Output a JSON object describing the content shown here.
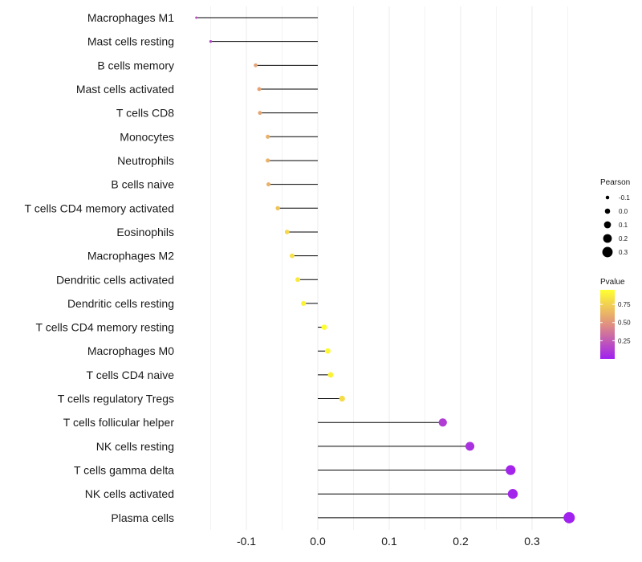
{
  "chart_data": {
    "type": "lollipop",
    "title": "",
    "xlabel": "",
    "ylabel": "",
    "xlim": [
      -0.18,
      0.36
    ],
    "x_ticks": [
      -0.1,
      0.0,
      0.1,
      0.2,
      0.3
    ],
    "x_tick_labels": [
      "-0.1",
      "0.0",
      "0.1",
      "0.2",
      "0.3"
    ],
    "grid": true,
    "categories": [
      "Macrophages M1",
      "Mast cells resting",
      "B cells memory",
      "Mast cells activated",
      "T cells CD8",
      "Monocytes",
      "Neutrophils",
      "B cells naive",
      "T cells CD4 memory activated",
      "Eosinophils",
      "Macrophages M2",
      "Dendritic cells activated",
      "Dendritic cells resting",
      "T cells CD4 memory resting",
      "Macrophages M0",
      "T cells CD4 naive",
      "T cells regulatory  Tregs ",
      "T cells follicular helper",
      "NK cells resting",
      "T cells gamma delta",
      "NK cells activated",
      "Plasma cells"
    ],
    "pearson": [
      -0.17,
      -0.15,
      -0.087,
      -0.082,
      -0.081,
      -0.07,
      -0.07,
      -0.069,
      -0.056,
      -0.043,
      -0.036,
      -0.028,
      -0.02,
      0.009,
      0.014,
      0.018,
      0.034,
      0.175,
      0.213,
      0.27,
      0.273,
      0.352
    ],
    "pvalue": [
      0.2,
      0.15,
      0.55,
      0.55,
      0.56,
      0.62,
      0.62,
      0.62,
      0.7,
      0.78,
      0.82,
      0.86,
      0.9,
      0.96,
      0.92,
      0.9,
      0.8,
      0.12,
      0.07,
      0.02,
      0.02,
      0.01
    ],
    "legend_size": {
      "title": "Pearson",
      "values": [
        -0.1,
        0.0,
        0.1,
        0.2,
        0.3
      ],
      "labels": [
        "-0.1",
        "0.0",
        "0.1",
        "0.2",
        "0.3"
      ]
    },
    "legend_color": {
      "title": "Pvalue",
      "ticks": [
        0.75,
        0.5,
        0.25
      ],
      "labels": [
        "0.75",
        "0.50",
        "0.25"
      ],
      "range": [
        0.0,
        0.95
      ],
      "low_color": "#a020f0",
      "mid_color": "#e09080",
      "high_color": "#ffff30"
    },
    "legend_placement": "right"
  },
  "colors": {
    "stem": "#000000",
    "grid": "#ebebeb",
    "text": "#1a1a1a"
  }
}
